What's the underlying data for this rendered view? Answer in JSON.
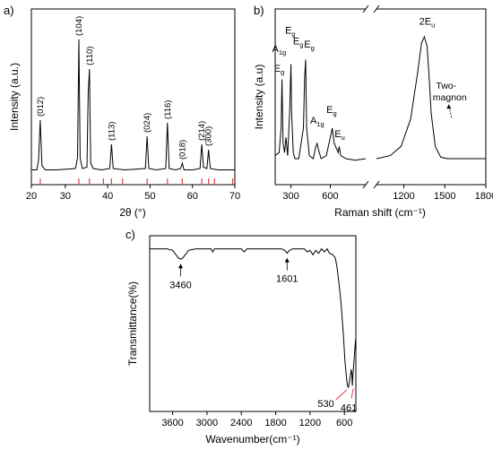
{
  "chart_data": [
    {
      "panel": "a)",
      "type": "line",
      "xlabel": "2θ (°)",
      "ylabel": "Intensity (a.u.)",
      "xlim": [
        22,
        70
      ],
      "xticks": [
        20,
        30,
        40,
        50,
        60,
        70
      ],
      "ylim": [
        0,
        100
      ],
      "series": [
        {
          "color": "#000000",
          "x": [
            22,
            23.3,
            23.7,
            24.1,
            24.5,
            25.3,
            28,
            32.4,
            32.9,
            33.2,
            33.5,
            34.0,
            35.1,
            35.4,
            35.7,
            36.0,
            36.6,
            38.5,
            40.5,
            40.9,
            41.3,
            44,
            48.9,
            49.3,
            49.7,
            51.5,
            53.7,
            54.1,
            54.5,
            56,
            57.2,
            57.6,
            58.0,
            60,
            61.8,
            62.2,
            62.6,
            63.4,
            63.8,
            64.2,
            66,
            70
          ],
          "y": [
            3,
            3,
            10,
            40,
            6,
            3,
            3,
            4,
            12,
            100,
            12,
            4,
            5,
            60,
            78,
            8,
            4,
            3,
            4,
            22,
            4,
            3,
            4,
            28,
            4,
            3,
            4,
            38,
            4,
            3,
            4,
            8,
            3,
            3,
            4,
            22,
            5,
            4,
            18,
            4,
            3,
            3
          ]
        }
      ],
      "annotations": [
        {
          "label": "(012)",
          "x": 24.1,
          "y": 40
        },
        {
          "label": "(104)",
          "x": 33.2,
          "y": 100
        },
        {
          "label": "(110)",
          "x": 35.7,
          "y": 78
        },
        {
          "label": "(113)",
          "x": 40.9,
          "y": 22
        },
        {
          "label": "(024)",
          "x": 49.3,
          "y": 28
        },
        {
          "label": "(116)",
          "x": 54.1,
          "y": 38
        },
        {
          "label": "(018)",
          "x": 57.6,
          "y": 8
        },
        {
          "label": "(214)",
          "x": 62.2,
          "y": 22
        },
        {
          "label": "(300)",
          "x": 63.8,
          "y": 18
        }
      ],
      "reference_lines_x": [
        24.1,
        33.2,
        35.7,
        39.0,
        40.9,
        43.5,
        49.3,
        54.1,
        57.6,
        62.2,
        63.8,
        65.2,
        69.5
      ],
      "reference_color": "#e0404a"
    },
    {
      "panel": "b)",
      "type": "line",
      "xlabel": "Raman shift (cm⁻¹)",
      "ylabel": "Intensity (a.u)",
      "axis_break": [
        870,
        1000
      ],
      "xlim": [
        180,
        1800
      ],
      "xticks": [
        300,
        600,
        1200,
        1500,
        1800
      ],
      "ylim": [
        0,
        100
      ],
      "series": [
        {
          "color": "#000000",
          "x": [
            180,
            210,
            225,
            232,
            240,
            252,
            262,
            275,
            290,
            300,
            305,
            318,
            330,
            360,
            395,
            405,
            412,
            420,
            440,
            470,
            490,
            500,
            510,
            530,
            570,
            600,
            615,
            630,
            660,
            668,
            680,
            720,
            790,
            870
          ],
          "y": [
            12,
            14,
            30,
            62,
            20,
            14,
            24,
            12,
            40,
            72,
            40,
            14,
            10,
            10,
            30,
            64,
            75,
            30,
            12,
            10,
            18,
            20,
            16,
            10,
            12,
            24,
            30,
            20,
            14,
            18,
            12,
            10,
            9,
            10
          ]
        },
        {
          "color": "#000000",
          "x": [
            1000,
            1100,
            1180,
            1250,
            1300,
            1330,
            1350,
            1370,
            1385,
            1400,
            1430,
            1470,
            1520,
            1560,
            1600,
            1650,
            1700,
            1750,
            1800
          ],
          "y": [
            10,
            12,
            18,
            36,
            66,
            86,
            90,
            84,
            64,
            40,
            18,
            11,
            10,
            10,
            10,
            10,
            10,
            10,
            10
          ]
        }
      ],
      "annotations": [
        {
          "label": "A",
          "sub": "1g",
          "x": 210,
          "y": 80
        },
        {
          "label": "E",
          "sub": "g",
          "x": 210,
          "y": 67
        },
        {
          "label": "E",
          "sub": "g",
          "x": 295,
          "y": 92
        },
        {
          "label": "E",
          "sub": "g",
          "x": 355,
          "y": 85
        },
        {
          "label": "E",
          "sub": "g",
          "x": 440,
          "y": 83
        },
        {
          "label": "A",
          "sub": "1g",
          "x": 500,
          "y": 33
        },
        {
          "label": "E",
          "sub": "g",
          "x": 610,
          "y": 40
        },
        {
          "label": "E",
          "sub": "u",
          "x": 672,
          "y": 24
        },
        {
          "label": "2E",
          "sub": "u",
          "x": 1370,
          "y": 98
        }
      ],
      "note": {
        "lines": [
          "Two-",
          "magnon"
        ],
        "x": 1510,
        "y": 44
      }
    },
    {
      "panel": "c)",
      "type": "line",
      "xlabel": "Wavenumber(cm⁻¹)",
      "ylabel": "Transmittance(%)",
      "xlim": [
        4000,
        400
      ],
      "xticks": [
        3600,
        3000,
        2400,
        1800,
        1200,
        600
      ],
      "xtick_labels": [
        "3600",
        "3000",
        "2400",
        "1800",
        "1200",
        "600"
      ],
      "ylim": [
        0,
        100
      ],
      "series": [
        {
          "color": "#000000",
          "x": [
            4000,
            3800,
            3700,
            3600,
            3540,
            3500,
            3460,
            3420,
            3380,
            3320,
            3200,
            2930,
            2900,
            2870,
            2700,
            2400,
            2350,
            2300,
            2000,
            1700,
            1640,
            1601,
            1560,
            1500,
            1400,
            1300,
            1250,
            1200,
            1150,
            1100,
            1050,
            1000,
            950,
            900,
            860,
            800,
            760,
            730,
            700,
            660,
            620,
            590,
            560,
            545,
            530,
            515,
            500,
            480,
            470,
            461,
            450,
            430,
            415,
            405,
            400
          ],
          "y": [
            96,
            96,
            96,
            95,
            92,
            90,
            89,
            90,
            92,
            95,
            96,
            96,
            94,
            96,
            96,
            96,
            94,
            96,
            96,
            96,
            95,
            93,
            95,
            96,
            96,
            96,
            94,
            95,
            92,
            95,
            93,
            96,
            94,
            96,
            93,
            92,
            90,
            84,
            75,
            60,
            40,
            20,
            8,
            4,
            3,
            6,
            10,
            15,
            12,
            4,
            12,
            22,
            30,
            35,
            32
          ]
        }
      ],
      "annotations": [
        {
          "label": "3460",
          "x": 3460,
          "y": 89
        },
        {
          "label": "1601",
          "x": 1601,
          "y": 93
        },
        {
          "label": "530",
          "x": 530,
          "y": 3
        },
        {
          "label": "461",
          "x": 461,
          "y": 4
        }
      ]
    }
  ]
}
